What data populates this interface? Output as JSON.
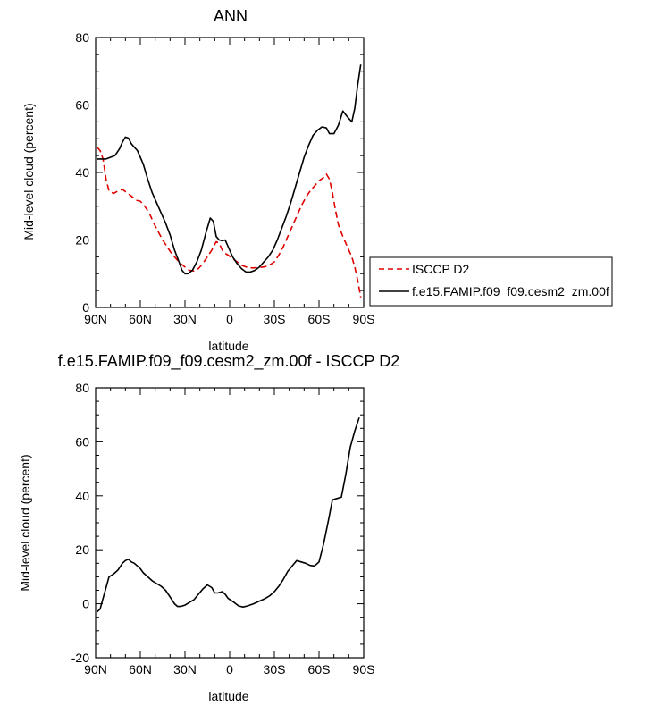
{
  "chart_data": [
    {
      "type": "line",
      "title": "ANN",
      "xlabel": "latitude",
      "ylabel": "Mid-level cloud (percent)",
      "xlim": [
        90,
        -90
      ],
      "ylim": [
        0,
        80
      ],
      "x_ticks": [
        90,
        60,
        30,
        0,
        -30,
        -60,
        -90
      ],
      "x_tick_labels": [
        "90N",
        "60N",
        "30N",
        "0",
        "30S",
        "60S",
        "90S"
      ],
      "y_ticks": [
        0,
        20,
        40,
        60,
        80
      ],
      "y_tick_labels": [
        "0",
        "20",
        "40",
        "60",
        "80"
      ],
      "legend_position": "right",
      "series": [
        {
          "name": "ISCCP D2",
          "color": "#e00000",
          "style": "dashed",
          "points": [
            [
              89,
              47.5
            ],
            [
              87,
              46.5
            ],
            [
              85,
              44
            ],
            [
              83,
              38
            ],
            [
              81,
              34.5
            ],
            [
              78,
              33.8
            ],
            [
              75,
              34.5
            ],
            [
              72,
              35
            ],
            [
              69,
              34
            ],
            [
              66,
              33
            ],
            [
              63,
              31.8
            ],
            [
              60,
              31.5
            ],
            [
              57,
              30
            ],
            [
              54,
              28
            ],
            [
              51,
              25
            ],
            [
              48,
              22.5
            ],
            [
              45,
              20
            ],
            [
              42,
              18
            ],
            [
              39,
              16
            ],
            [
              36,
              14.5
            ],
            [
              33,
              13
            ],
            [
              30,
              12
            ],
            [
              27,
              11
            ],
            [
              24,
              10.8
            ],
            [
              21,
              11.5
            ],
            [
              18,
              13
            ],
            [
              15,
              15
            ],
            [
              12,
              17
            ],
            [
              9,
              19.5
            ],
            [
              7,
              19
            ],
            [
              5,
              17
            ],
            [
              3,
              16
            ],
            [
              1,
              15.5
            ],
            [
              -2,
              14.5
            ],
            [
              -5,
              13.5
            ],
            [
              -8,
              12.5
            ],
            [
              -11,
              12
            ],
            [
              -15,
              11.7
            ],
            [
              -19,
              11.8
            ],
            [
              -23,
              12
            ],
            [
              -26,
              12.3
            ],
            [
              -30,
              13.5
            ],
            [
              -33,
              15.5
            ],
            [
              -36,
              18
            ],
            [
              -39,
              21
            ],
            [
              -42,
              24
            ],
            [
              -45,
              27
            ],
            [
              -48,
              30
            ],
            [
              -51,
              32.5
            ],
            [
              -54,
              34.5
            ],
            [
              -57,
              36
            ],
            [
              -60,
              37.5
            ],
            [
              -63,
              38.5
            ],
            [
              -65,
              39.5
            ],
            [
              -67,
              38
            ],
            [
              -69,
              34
            ],
            [
              -71,
              29
            ],
            [
              -73,
              24.5
            ],
            [
              -76,
              21
            ],
            [
              -79,
              18
            ],
            [
              -82,
              15
            ],
            [
              -84,
              12
            ],
            [
              -86,
              8
            ],
            [
              -88,
              3
            ]
          ]
        },
        {
          "name": "f.e15.FAMIP.f09_f09.cesm2_zm.00f",
          "color": "#000000",
          "style": "solid",
          "points": [
            [
              89,
              44
            ],
            [
              86,
              44
            ],
            [
              83,
              44
            ],
            [
              80,
              44.5
            ],
            [
              77,
              45
            ],
            [
              74,
              47
            ],
            [
              72,
              49
            ],
            [
              70,
              50.5
            ],
            [
              68,
              50.2
            ],
            [
              66,
              48.5
            ],
            [
              64,
              47.5
            ],
            [
              62,
              46.5
            ],
            [
              60,
              44.5
            ],
            [
              58,
              42.5
            ],
            [
              55,
              38
            ],
            [
              52,
              34
            ],
            [
              49,
              31
            ],
            [
              46,
              28
            ],
            [
              43,
              25
            ],
            [
              40,
              21.5
            ],
            [
              37,
              17
            ],
            [
              34,
              13.5
            ],
            [
              32,
              11
            ],
            [
              30,
              10
            ],
            [
              28,
              10
            ],
            [
              25,
              11
            ],
            [
              22,
              13.5
            ],
            [
              19,
              17
            ],
            [
              16,
              22
            ],
            [
              13,
              26.5
            ],
            [
              11,
              25.5
            ],
            [
              9,
              21
            ],
            [
              7,
              20
            ],
            [
              5,
              19.8
            ],
            [
              3,
              20
            ],
            [
              1,
              18
            ],
            [
              -2,
              15
            ],
            [
              -5,
              13
            ],
            [
              -8,
              11.5
            ],
            [
              -11,
              10.5
            ],
            [
              -14,
              10.5
            ],
            [
              -17,
              11
            ],
            [
              -20,
              12
            ],
            [
              -23,
              13.5
            ],
            [
              -26,
              15
            ],
            [
              -29,
              17
            ],
            [
              -32,
              20
            ],
            [
              -35,
              23.5
            ],
            [
              -38,
              27
            ],
            [
              -41,
              31
            ],
            [
              -44,
              35.5
            ],
            [
              -47,
              40
            ],
            [
              -50,
              44.5
            ],
            [
              -53,
              48
            ],
            [
              -56,
              51
            ],
            [
              -59,
              52.5
            ],
            [
              -62,
              53.5
            ],
            [
              -65,
              53.2
            ],
            [
              -67,
              51.5
            ],
            [
              -70,
              51.5
            ],
            [
              -73,
              54
            ],
            [
              -76,
              58.2
            ],
            [
              -79,
              56.5
            ],
            [
              -82,
              55
            ],
            [
              -84,
              59
            ],
            [
              -86,
              66
            ],
            [
              -88,
              72
            ]
          ]
        }
      ]
    },
    {
      "type": "line",
      "title": "f.e15.FAMIP.f09_f09.cesm2_zm.00f - ISCCP D2",
      "xlabel": "latitude",
      "ylabel": "Mid-level cloud (percent)",
      "xlim": [
        90,
        -90
      ],
      "ylim": [
        -20,
        80
      ],
      "x_ticks": [
        90,
        60,
        30,
        0,
        -30,
        -60,
        -90
      ],
      "x_tick_labels": [
        "90N",
        "60N",
        "30N",
        "0",
        "30S",
        "60S",
        "90S"
      ],
      "y_ticks": [
        -20,
        0,
        20,
        40,
        60,
        80
      ],
      "y_tick_labels": [
        "-20",
        "0",
        "20",
        "40",
        "60",
        "80"
      ],
      "series": [
        {
          "color": "#000000",
          "style": "solid",
          "points": [
            [
              89,
              -3
            ],
            [
              87,
              -2
            ],
            [
              85,
              2
            ],
            [
              83,
              6
            ],
            [
              81,
              10
            ],
            [
              78,
              11
            ],
            [
              75,
              12.5
            ],
            [
              72,
              15
            ],
            [
              70,
              16
            ],
            [
              68,
              16.5
            ],
            [
              66,
              15.5
            ],
            [
              64,
              15
            ],
            [
              62,
              14
            ],
            [
              60,
              13
            ],
            [
              58,
              11.5
            ],
            [
              55,
              10
            ],
            [
              52,
              8.5
            ],
            [
              49,
              7.5
            ],
            [
              46,
              6.5
            ],
            [
              43,
              5
            ],
            [
              40,
              2.5
            ],
            [
              37,
              0
            ],
            [
              35,
              -1
            ],
            [
              33,
              -1
            ],
            [
              30,
              -0.5
            ],
            [
              27,
              0.5
            ],
            [
              24,
              1.5
            ],
            [
              21,
              3.5
            ],
            [
              18,
              5.5
            ],
            [
              15,
              7
            ],
            [
              12,
              6
            ],
            [
              10,
              4
            ],
            [
              8,
              4
            ],
            [
              5,
              4.5
            ],
            [
              3,
              3.5
            ],
            [
              1,
              2
            ],
            [
              -3,
              0.5
            ],
            [
              -6,
              -0.8
            ],
            [
              -9,
              -1.2
            ],
            [
              -12,
              -0.8
            ],
            [
              -16,
              0
            ],
            [
              -20,
              1
            ],
            [
              -24,
              2
            ],
            [
              -27,
              3
            ],
            [
              -30,
              4.5
            ],
            [
              -33,
              6.5
            ],
            [
              -36,
              9
            ],
            [
              -39,
              12
            ],
            [
              -42,
              14
            ],
            [
              -45,
              16
            ],
            [
              -48,
              15.5
            ],
            [
              -51,
              15
            ],
            [
              -54,
              14.2
            ],
            [
              -57,
              14
            ],
            [
              -60,
              15.5
            ],
            [
              -63,
              22
            ],
            [
              -66,
              30
            ],
            [
              -69,
              38.5
            ],
            [
              -72,
              39
            ],
            [
              -75,
              39.5
            ],
            [
              -78,
              48
            ],
            [
              -81,
              58
            ],
            [
              -84,
              64
            ],
            [
              -87,
              69
            ]
          ]
        }
      ]
    }
  ]
}
